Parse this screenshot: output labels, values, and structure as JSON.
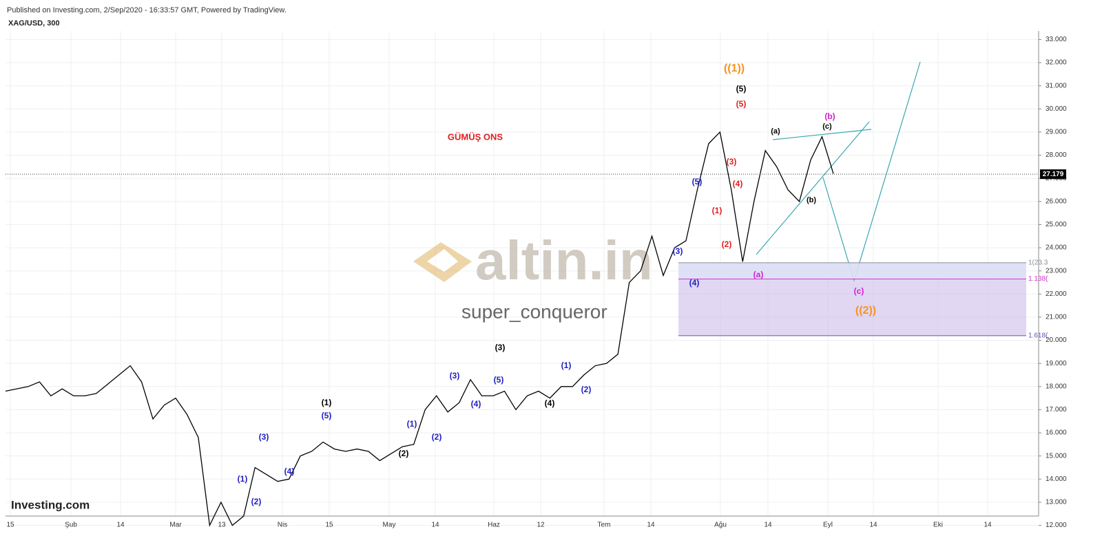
{
  "chart_data": {
    "type": "line",
    "header": "Published on Investing.com, 2/Sep/2020 - 16:33:57 GMT, Powered by TradingView.",
    "symbol": "XAG/USD, 300",
    "watermark": "altin.in",
    "watermark_user": "super_conqueror",
    "logo": "Investing.com",
    "xtick_labels": [
      "15",
      "Şub",
      "14",
      "Mar",
      "13",
      "Nis",
      "15",
      "May",
      "14",
      "Haz",
      "12",
      "Tem",
      "14",
      "Ağu",
      "14",
      "Eyl",
      "14",
      "Eki",
      "14"
    ],
    "ylim": [
      11.6,
      33.4
    ],
    "yticks": [
      {
        "value": 12,
        "label": "12.000"
      },
      {
        "value": 13,
        "label": "13.000"
      },
      {
        "value": 14,
        "label": "14.000"
      },
      {
        "value": 15,
        "label": "15.000"
      },
      {
        "value": 16,
        "label": "16.000"
      },
      {
        "value": 17,
        "label": "17.000"
      },
      {
        "value": 18,
        "label": "18.000"
      },
      {
        "value": 19,
        "label": "19.000"
      },
      {
        "value": 20,
        "label": "20.000"
      },
      {
        "value": 21,
        "label": "21.000"
      },
      {
        "value": 22,
        "label": "22.000"
      },
      {
        "value": 23,
        "label": "23.000"
      },
      {
        "value": 24,
        "label": "24.000"
      },
      {
        "value": 25,
        "label": "25.000"
      },
      {
        "value": 26,
        "label": "26.000"
      },
      {
        "value": 27,
        "label": "27.000"
      },
      {
        "value": 28,
        "label": "28.000"
      },
      {
        "value": 29,
        "label": "29.000"
      },
      {
        "value": 30,
        "label": "30.000"
      },
      {
        "value": 31,
        "label": "31.000"
      },
      {
        "value": 32,
        "label": "32.000"
      },
      {
        "value": 33,
        "label": "33.000"
      }
    ],
    "grid": true,
    "series": [
      {
        "name": "XAG/USD",
        "color": "#000000",
        "values": [
          17.8,
          17.9,
          18.0,
          18.2,
          17.6,
          17.9,
          17.6,
          17.6,
          17.7,
          18.1,
          18.5,
          18.9,
          18.2,
          16.6,
          17.2,
          17.5,
          16.8,
          15.8,
          12.0,
          13.0,
          12.0,
          12.4,
          14.5,
          14.2,
          13.9,
          14.0,
          15.0,
          15.2,
          15.6,
          15.3,
          15.2,
          15.3,
          15.2,
          14.8,
          15.1,
          15.4,
          15.5,
          17.0,
          17.6,
          16.9,
          17.3,
          18.3,
          17.6,
          17.6,
          17.8,
          17.0,
          17.6,
          17.8,
          17.5,
          18.0,
          18.0,
          18.5,
          18.9,
          19.0,
          19.4,
          22.5,
          23.0,
          24.5,
          22.8,
          24.0,
          24.3,
          26.5,
          28.5,
          29.0,
          26.5,
          23.4,
          26.0,
          28.2,
          27.5,
          26.5,
          26.0,
          27.8,
          28.8,
          27.2
        ]
      }
    ],
    "last_price": {
      "value": 27.179,
      "label": "27.179"
    },
    "fib_levels": [
      {
        "value": 23.35,
        "label": "1(23.3",
        "color": "#8a8a9a"
      },
      {
        "value": 22.65,
        "label": "1.138(",
        "color": "#cc33cc"
      },
      {
        "value": 20.2,
        "label": "1.618(",
        "color": "#5555bb"
      }
    ],
    "annotations": [
      {
        "text": "((1))",
        "color": "#f7931e"
      },
      {
        "text": "(5)",
        "color": "#000000"
      },
      {
        "text": "(5)",
        "color": "#e02020"
      },
      {
        "text": "(3)",
        "color": "#e02020"
      },
      {
        "text": "(4)",
        "color": "#e02020"
      },
      {
        "text": "(1)",
        "color": "#e02020"
      },
      {
        "text": "(2)",
        "color": "#e02020"
      },
      {
        "text": "(5)",
        "color": "#2020c0"
      },
      {
        "text": "(3)",
        "color": "#2020c0"
      },
      {
        "text": "(4)",
        "color": "#2020c0"
      },
      {
        "text": "(a)",
        "color": "#000000"
      },
      {
        "text": "(c)",
        "color": "#000000"
      },
      {
        "text": "(b)",
        "color": "#d020d0"
      },
      {
        "text": "(b)",
        "color": "#000000"
      },
      {
        "text": "(a)",
        "color": "#d020d0"
      },
      {
        "text": "(c)",
        "color": "#d020d0"
      },
      {
        "text": "((2))",
        "color": "#f7931e"
      },
      {
        "text": "GÜMÜŞ ONS",
        "color": "#e02020"
      },
      {
        "text": "(1)",
        "color": "#2020c0"
      },
      {
        "text": "(2)",
        "color": "#2020c0"
      },
      {
        "text": "(3)",
        "color": "#2020c0"
      },
      {
        "text": "(4)",
        "color": "#2020c0"
      },
      {
        "text": "(5)",
        "color": "#2020c0"
      },
      {
        "text": "(1)",
        "color": "#000000"
      },
      {
        "text": "(1)",
        "color": "#2020c0"
      },
      {
        "text": "(2)",
        "color": "#2020c0"
      },
      {
        "text": "(2)",
        "color": "#000000"
      },
      {
        "text": "(3)",
        "color": "#2020c0"
      },
      {
        "text": "(4)",
        "color": "#2020c0"
      },
      {
        "text": "(5)",
        "color": "#2020c0"
      },
      {
        "text": "(3)",
        "color": "#000000"
      },
      {
        "text": "(1)",
        "color": "#2020c0"
      },
      {
        "text": "(2)",
        "color": "#2020c0"
      },
      {
        "text": "(4)",
        "color": "#000000"
      }
    ]
  }
}
